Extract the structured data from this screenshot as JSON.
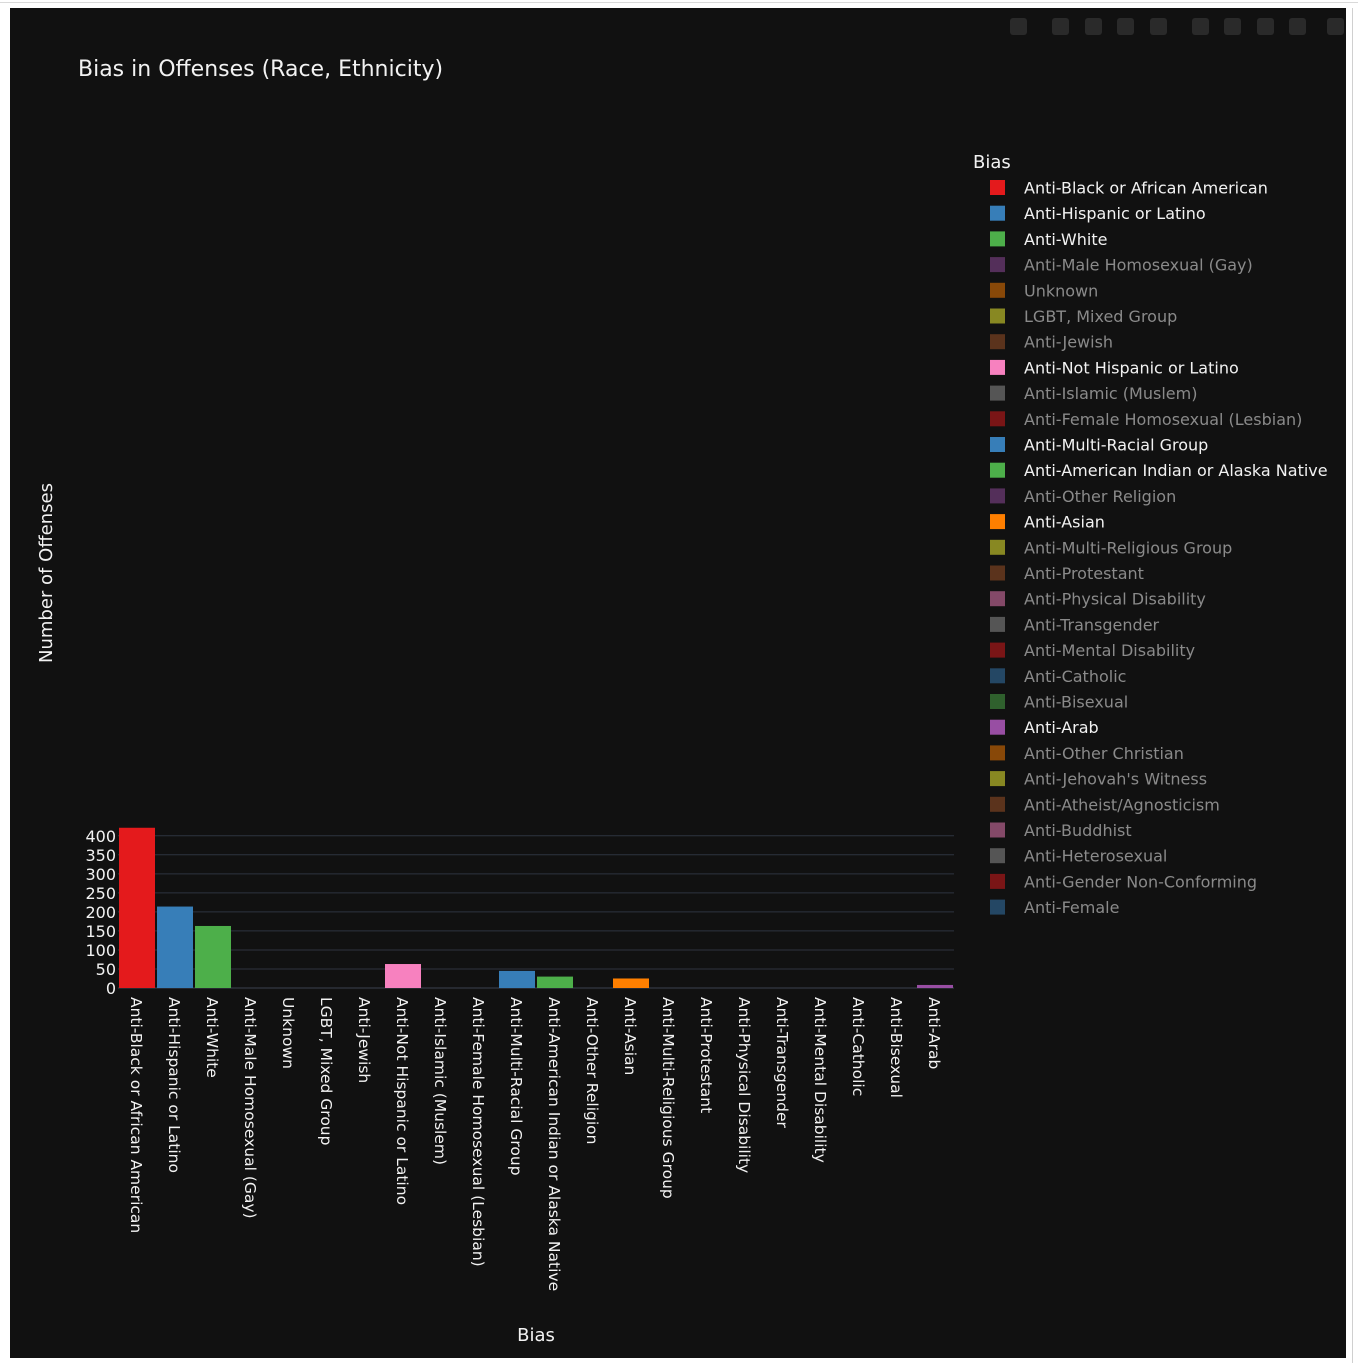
{
  "chart_data": {
    "type": "bar",
    "title": "Bias in Offenses (Race, Ethnicity)",
    "xlabel": "Bias",
    "ylabel": "Number of Offenses",
    "ylim": [
      0,
      421
    ],
    "yticks": [
      0,
      50,
      100,
      150,
      200,
      250,
      300,
      350,
      400
    ],
    "grid": true,
    "legend_title": "Bias",
    "legend_position": "right",
    "categories": [
      "Anti-Black or African American",
      "Anti-Hispanic or Latino",
      "Anti-White",
      "Anti-Male Homosexual (Gay)",
      "Unknown",
      "LGBT, Mixed Group",
      "Anti-Jewish",
      "Anti-Not Hispanic or Latino",
      "Anti-Islamic (Muslem)",
      "Anti-Female Homosexual (Lesbian)",
      "Anti-Multi-Racial Group",
      "Anti-American Indian or Alaska Native",
      "Anti-Other Religion",
      "Anti-Asian",
      "Anti-Multi-Religious Group",
      "Anti-Protestant",
      "Anti-Physical Disability",
      "Anti-Transgender",
      "Anti-Mental Disability",
      "Anti-Catholic",
      "Anti-Bisexual",
      "Anti-Arab"
    ],
    "values": [
      421,
      214,
      163,
      0,
      0,
      0,
      0,
      63,
      0,
      0,
      45,
      30,
      0,
      25,
      0,
      0,
      0,
      0,
      0,
      0,
      0,
      8
    ],
    "bar_colors": [
      "#e41a1c",
      "#377eb8",
      "#4daf4a",
      "#984ea3",
      "#ff7f00",
      "#ffff33",
      "#a65628",
      "#f781bf",
      "#999999",
      "#e41a1c",
      "#377eb8",
      "#4daf4a",
      "#984ea3",
      "#ff7f00",
      "#ffff33",
      "#a65628",
      "#f781bf",
      "#999999",
      "#e41a1c",
      "#377eb8",
      "#4daf4a",
      "#984ea3"
    ],
    "legend": [
      {
        "name": "Anti-Black or African American",
        "color": "#e41a1c",
        "active": true
      },
      {
        "name": "Anti-Hispanic or Latino",
        "color": "#377eb8",
        "active": true
      },
      {
        "name": "Anti-White",
        "color": "#4daf4a",
        "active": true
      },
      {
        "name": "Anti-Male Homosexual (Gay)",
        "color": "#984ea3",
        "active": false
      },
      {
        "name": "Unknown",
        "color": "#ff7f00",
        "active": false
      },
      {
        "name": "LGBT, Mixed Group",
        "color": "#ffff33",
        "active": false
      },
      {
        "name": "Anti-Jewish",
        "color": "#a65628",
        "active": false
      },
      {
        "name": "Anti-Not Hispanic or Latino",
        "color": "#f781bf",
        "active": true
      },
      {
        "name": "Anti-Islamic (Muslem)",
        "color": "#999999",
        "active": false
      },
      {
        "name": "Anti-Female Homosexual (Lesbian)",
        "color": "#e41a1c",
        "active": false
      },
      {
        "name": "Anti-Multi-Racial Group",
        "color": "#377eb8",
        "active": true
      },
      {
        "name": "Anti-American Indian or Alaska Native",
        "color": "#4daf4a",
        "active": true
      },
      {
        "name": "Anti-Other Religion",
        "color": "#984ea3",
        "active": false
      },
      {
        "name": "Anti-Asian",
        "color": "#ff7f00",
        "active": true
      },
      {
        "name": "Anti-Multi-Religious Group",
        "color": "#ffff33",
        "active": false
      },
      {
        "name": "Anti-Protestant",
        "color": "#a65628",
        "active": false
      },
      {
        "name": "Anti-Physical Disability",
        "color": "#f781bf",
        "active": false
      },
      {
        "name": "Anti-Transgender",
        "color": "#999999",
        "active": false
      },
      {
        "name": "Anti-Mental Disability",
        "color": "#e41a1c",
        "active": false
      },
      {
        "name": "Anti-Catholic",
        "color": "#377eb8",
        "active": false
      },
      {
        "name": "Anti-Bisexual",
        "color": "#4daf4a",
        "active": false
      },
      {
        "name": "Anti-Arab",
        "color": "#984ea3",
        "active": true
      },
      {
        "name": "Anti-Other Christian",
        "color": "#ff7f00",
        "active": false
      },
      {
        "name": "Anti-Jehovah's Witness",
        "color": "#ffff33",
        "active": false
      },
      {
        "name": "Anti-Atheist/Agnosticism",
        "color": "#a65628",
        "active": false
      },
      {
        "name": "Anti-Buddhist",
        "color": "#f781bf",
        "active": false
      },
      {
        "name": "Anti-Heterosexual",
        "color": "#999999",
        "active": false
      },
      {
        "name": "Anti-Gender Non-Conforming",
        "color": "#e41a1c",
        "active": false
      },
      {
        "name": "Anti-Female",
        "color": "#377eb8",
        "active": false
      }
    ]
  },
  "colors": {
    "background": "#111111",
    "grid": "#2e3440",
    "text": "#f2f2f2",
    "legend_inactive_text": "#8a8a8a"
  },
  "toolbar": {
    "icons": [
      "camera-icon",
      "zoom-icon",
      "pan-icon",
      "box-select-icon",
      "lasso-icon",
      "zoom-in-icon",
      "zoom-out-icon",
      "autoscale-icon",
      "home-icon",
      "plotly-logo-icon"
    ]
  }
}
